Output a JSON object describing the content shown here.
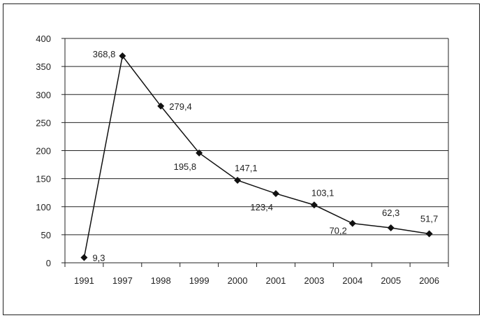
{
  "chart_data": {
    "type": "line",
    "title": "",
    "xlabel": "",
    "ylabel": "",
    "categories": [
      "1991",
      "1997",
      "1998",
      "1999",
      "2000",
      "2001",
      "2003",
      "2004",
      "2005",
      "2006"
    ],
    "series": [
      {
        "name": "",
        "values": [
          9.3,
          368.8,
          279.4,
          195.8,
          147.1,
          123.4,
          103.1,
          70.2,
          62.3,
          51.7
        ],
        "marker": "diamond",
        "color": "#111111"
      }
    ],
    "data_labels": [
      "9,3",
      "368,8",
      "279,4",
      "195,8",
      "147,1",
      "123,4",
      "103,1",
      "70,2",
      "62,3",
      "51,7"
    ],
    "label_placement": [
      "right",
      "left",
      "right",
      "below-left",
      "above-right",
      "below-left",
      "above-right",
      "left",
      "above",
      "above"
    ],
    "ylim": [
      0,
      400
    ],
    "yticks": [
      0,
      50,
      100,
      150,
      200,
      250,
      300,
      350,
      400
    ],
    "ytick_labels": [
      "0",
      "50",
      "100",
      "150",
      "200",
      "250",
      "300",
      "350",
      "400"
    ],
    "grid": true,
    "legend": "none"
  }
}
